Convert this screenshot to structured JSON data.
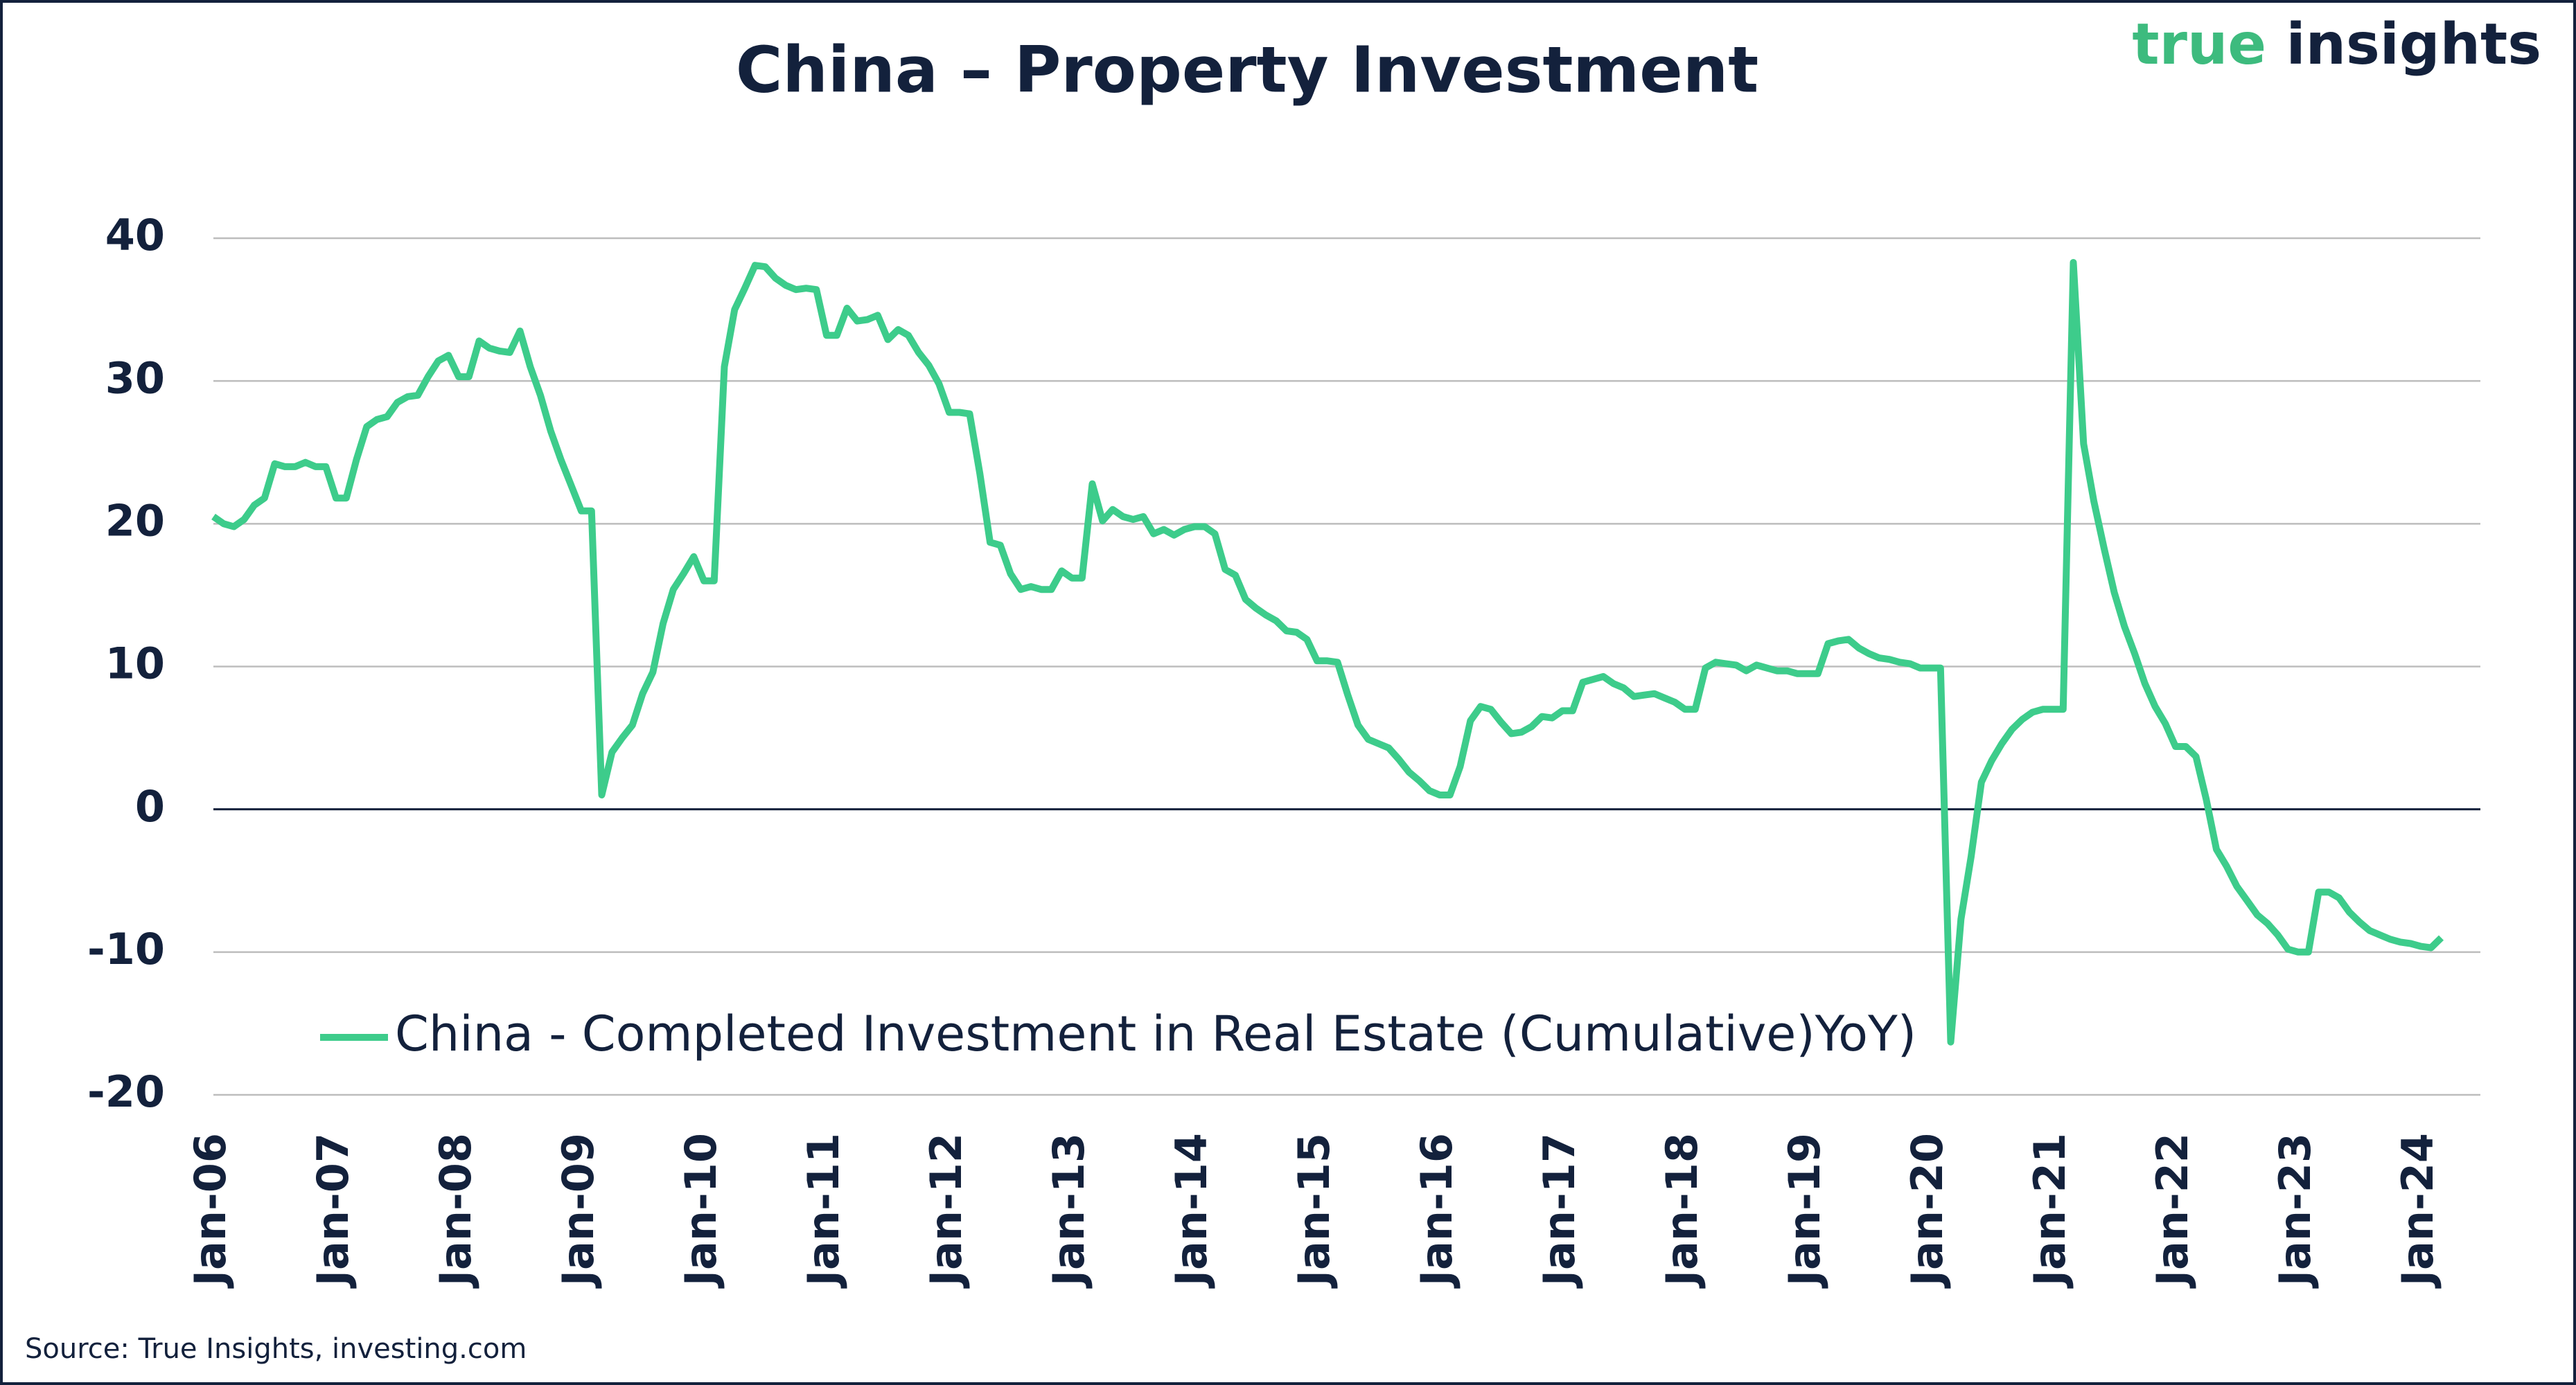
{
  "chart_data": {
    "type": "line",
    "title": "China – Property Investment",
    "logo": {
      "first": "true",
      "second": "insights"
    },
    "source": "Source: True Insights, investing.com",
    "categories": [
      "Jan-06",
      null,
      null,
      null,
      null,
      null,
      null,
      null,
      null,
      null,
      null,
      null,
      "Jan-07",
      null,
      null,
      null,
      null,
      null,
      null,
      null,
      null,
      null,
      null,
      null,
      "Jan-08",
      null,
      null,
      null,
      null,
      null,
      null,
      null,
      null,
      null,
      null,
      null,
      "Jan-09",
      null,
      null,
      null,
      null,
      null,
      null,
      null,
      null,
      null,
      null,
      null,
      "Jan-10",
      null,
      null,
      null,
      null,
      null,
      null,
      null,
      null,
      null,
      null,
      null,
      "Jan-11",
      null,
      null,
      null,
      null,
      null,
      null,
      null,
      null,
      null,
      null,
      null,
      "Jan-12",
      null,
      null,
      null,
      null,
      null,
      null,
      null,
      null,
      null,
      null,
      null,
      "Jan-13",
      null,
      null,
      null,
      null,
      null,
      null,
      null,
      null,
      null,
      null,
      null,
      "Jan-14",
      null,
      null,
      null,
      null,
      null,
      null,
      null,
      null,
      null,
      null,
      null,
      "Jan-15",
      null,
      null,
      null,
      null,
      null,
      null,
      null,
      null,
      null,
      null,
      null,
      "Jan-16",
      null,
      null,
      null,
      null,
      null,
      null,
      null,
      null,
      null,
      null,
      null,
      "Jan-17",
      null,
      null,
      null,
      null,
      null,
      null,
      null,
      null,
      null,
      null,
      null,
      "Jan-18",
      null,
      null,
      null,
      null,
      null,
      null,
      null,
      null,
      null,
      null,
      null,
      "Jan-19",
      null,
      null,
      null,
      null,
      null,
      null,
      null,
      null,
      null,
      null,
      null,
      "Jan-20",
      null,
      null,
      null,
      null,
      null,
      null,
      null,
      null,
      null,
      null,
      null,
      "Jan-21",
      null,
      null,
      null,
      null,
      null,
      null,
      null,
      null,
      null,
      null,
      null,
      "Jan-22",
      null,
      null,
      null,
      null,
      null,
      null,
      null,
      null,
      null,
      null,
      null,
      "Jan-23",
      null,
      null,
      null,
      null,
      null,
      null,
      null,
      null,
      null,
      null,
      null,
      "Jan-24",
      null,
      null
    ],
    "series": [
      {
        "name": "China - Completed Investment in Real Estate (Cumulative)YoY)",
        "color": "#3dcc8b",
        "values": [
          20.5,
          20,
          19.8,
          20.3,
          21.3,
          21.8,
          24.2,
          24,
          24,
          24.3,
          24,
          24,
          21.8,
          21.8,
          24.5,
          26.8,
          27.3,
          27.5,
          28.5,
          28.9,
          29,
          30.3,
          31.4,
          31.8,
          30.3,
          30.3,
          32.8,
          32.3,
          32.1,
          32,
          33.5,
          31,
          29,
          26.5,
          24.5,
          22.7,
          20.9,
          20.9,
          1,
          4,
          5,
          5.9,
          8.1,
          9.6,
          13,
          15.4,
          16.5,
          17.7,
          16,
          16,
          31,
          35,
          36.5,
          38.1,
          38,
          37.2,
          36.7,
          36.4,
          36.5,
          36.4,
          33.2,
          33.2,
          35.1,
          34.2,
          34.3,
          34.6,
          32.9,
          33.6,
          33.2,
          32,
          31.1,
          29.8,
          27.8,
          27.8,
          27.7,
          23.5,
          18.7,
          18.5,
          16.5,
          15.4,
          15.6,
          15.4,
          15.4,
          16.7,
          16.2,
          16.2,
          22.8,
          20.2,
          21,
          20.5,
          20.3,
          20.5,
          19.3,
          19.6,
          19.2,
          19.6,
          19.8,
          19.8,
          19.3,
          16.8,
          16.4,
          14.7,
          14.1,
          13.6,
          13.2,
          12.5,
          12.4,
          11.9,
          10.4,
          10.4,
          10.3,
          8,
          5.9,
          4.9,
          4.6,
          4.3,
          3.5,
          2.6,
          2,
          1.3,
          1,
          1,
          3,
          6.2,
          7.2,
          7,
          6.1,
          5.3,
          5.4,
          5.8,
          6.5,
          6.4,
          6.9,
          6.9,
          8.9,
          9.1,
          9.3,
          8.8,
          8.5,
          7.9,
          8,
          8.1,
          7.8,
          7.5,
          7,
          7,
          9.9,
          10.3,
          10.2,
          10.1,
          9.7,
          10.1,
          9.9,
          9.7,
          9.7,
          9.5,
          9.5,
          9.5,
          11.6,
          11.8,
          11.9,
          11.3,
          10.9,
          10.6,
          10.5,
          10.3,
          10.2,
          9.9,
          9.9,
          9.9,
          -16.3,
          -7.7,
          -3.3,
          1.9,
          3.4,
          4.6,
          5.6,
          6.3,
          6.8,
          7,
          7,
          7,
          38.3,
          25.6,
          21.6,
          18.3,
          15.2,
          12.8,
          10.9,
          8.8,
          7.2,
          6,
          4.4,
          4.4,
          3.7,
          0.7,
          -2.8,
          -4,
          -5.4,
          -6.4,
          -7.4,
          -8,
          -8.8,
          -9.8,
          -10,
          -10,
          -5.8,
          -5.8,
          -6.2,
          -7.2,
          -7.9,
          -8.5,
          -8.8,
          -9.1,
          -9.3,
          -9.4,
          -9.6,
          -9.7,
          -9
        ]
      }
    ],
    "ylim": [
      -20,
      40
    ],
    "yticks": [
      -20,
      -10,
      0,
      10,
      20,
      30,
      40
    ],
    "grid": true,
    "legend": "lower-left"
  }
}
